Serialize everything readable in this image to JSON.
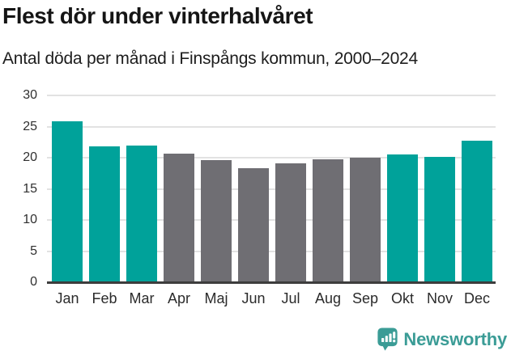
{
  "header": {
    "title": "Flest dör under vinterhalvåret",
    "subtitle": "Antal döda per månad i Finspångs kommun, 2000–2024"
  },
  "chart_data": {
    "type": "bar",
    "title": "Flest dör under vinterhalvåret",
    "subtitle": "Antal döda per månad i Finspångs kommun, 2000–2024",
    "categories": [
      "Jan",
      "Feb",
      "Mar",
      "Apr",
      "Maj",
      "Jun",
      "Jul",
      "Aug",
      "Sep",
      "Okt",
      "Nov",
      "Dec"
    ],
    "values": [
      25.9,
      21.8,
      22.0,
      20.6,
      19.6,
      18.3,
      19.1,
      19.8,
      20.0,
      20.5,
      20.1,
      22.7
    ],
    "bar_colors": [
      "#00a29a",
      "#00a29a",
      "#00a29a",
      "#6f6e73",
      "#6f6e73",
      "#6f6e73",
      "#6f6e73",
      "#6f6e73",
      "#6f6e73",
      "#00a29a",
      "#00a29a",
      "#00a29a"
    ],
    "highlight_color": "#00a29a",
    "muted_color": "#6f6e73",
    "xlabel": "",
    "ylabel": "",
    "ylim": [
      0,
      30
    ],
    "yticks": [
      0,
      5,
      10,
      15,
      20,
      25,
      30
    ],
    "grid": "horizontal",
    "legend": "none"
  },
  "footer": {
    "brand": "Newsworthy",
    "brand_color": "#3b9c96",
    "logo_icon": "bar-chart-speech-bubble-icon"
  }
}
